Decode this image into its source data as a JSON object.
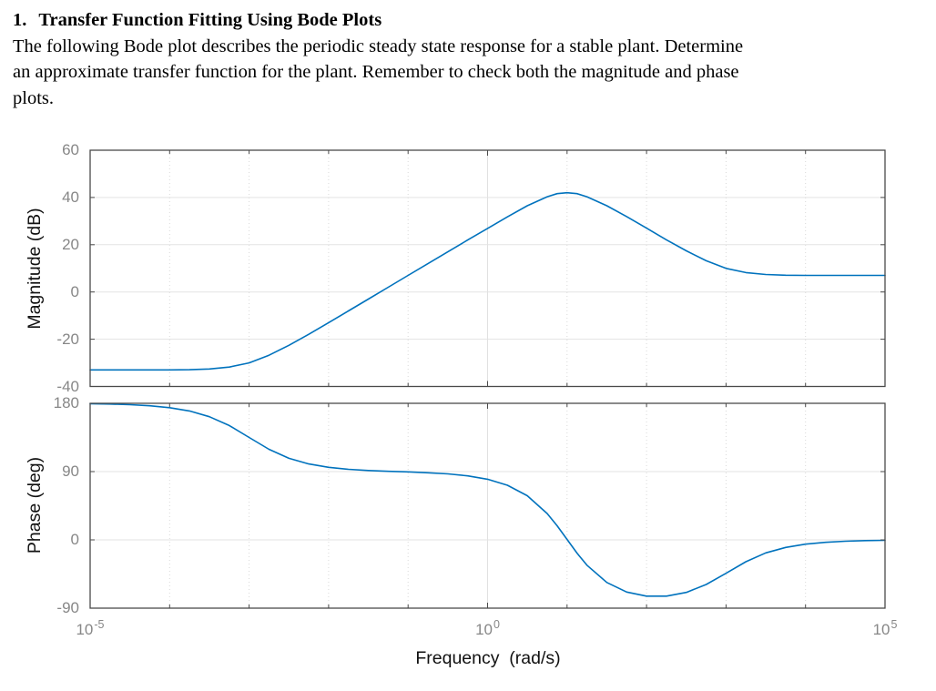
{
  "document": {
    "heading_number": "1.",
    "heading_title": "Transfer Function Fitting Using Bode Plots",
    "body_lines": [
      "The following Bode plot describes the periodic steady state response for a stable plant. Determine",
      "an approximate transfer function for the plant. Remember to check both the magnitude and phase",
      "plots."
    ]
  },
  "x_axis": {
    "label": "Frequency  (rad/s)",
    "scale": "log",
    "xlim": [
      1e-05,
      100000
    ],
    "tick_exponents": [
      "-5",
      "0",
      "5"
    ],
    "tick_positions_log10": [
      -5,
      0,
      5
    ],
    "minor_decades_log10": [
      -4,
      -3,
      -2,
      -1,
      1,
      2,
      3,
      4
    ]
  },
  "colors": {
    "curve": "#0072BD",
    "frame": "#4a4a4a",
    "major_grid": "#e0e0e0",
    "horizontal_grid": "#e3e3e3",
    "minor_grid": "#d9d9d9",
    "tick_label": "#878787",
    "axis_label": "#111111"
  },
  "chart_data": [
    {
      "type": "line",
      "id": "magnitude",
      "ylabel": "Magnitude (dB)",
      "ylim": [
        -40,
        60
      ],
      "yticks": [
        60,
        40,
        20,
        0,
        -20,
        -40
      ],
      "xscale": "log",
      "grid": true,
      "line_color": "#0072BD",
      "series": [
        {
          "name": "magnitude",
          "x_log10": [
            -5,
            -4.75,
            -4.5,
            -4.25,
            -4,
            -3.75,
            -3.5,
            -3.25,
            -3,
            -2.75,
            -2.5,
            -2.25,
            -2,
            -1.75,
            -1.5,
            -1.25,
            -1,
            -0.75,
            -0.5,
            -0.25,
            0,
            0.25,
            0.5,
            0.75,
            0.875,
            1,
            1.125,
            1.25,
            1.5,
            1.75,
            2,
            2.25,
            2.5,
            2.75,
            3,
            3.25,
            3.5,
            3.75,
            4,
            4.25,
            4.5,
            4.75,
            5
          ],
          "y": [
            -33,
            -33,
            -33,
            -33,
            -33,
            -32.9,
            -32.6,
            -31.8,
            -30,
            -26.8,
            -22.6,
            -17.9,
            -13,
            -8,
            -3,
            2,
            7,
            12,
            17,
            22,
            26.9,
            31.8,
            36.5,
            40.3,
            41.6,
            42,
            41.6,
            40.3,
            36.5,
            31.9,
            27,
            22.1,
            17.4,
            13.2,
            10,
            8.2,
            7.4,
            7.1,
            7,
            7,
            7,
            7,
            7
          ]
        }
      ]
    },
    {
      "type": "line",
      "id": "phase",
      "ylabel": "Phase (deg)",
      "ylim": [
        -90,
        180
      ],
      "yticks": [
        180,
        90,
        0,
        -90
      ],
      "xscale": "log",
      "grid": true,
      "line_color": "#0072BD",
      "series": [
        {
          "name": "phase",
          "x_log10": [
            -5,
            -4.75,
            -4.5,
            -4.25,
            -4,
            -3.75,
            -3.5,
            -3.25,
            -3,
            -2.75,
            -2.5,
            -2.25,
            -2,
            -1.75,
            -1.5,
            -1.25,
            -1,
            -0.75,
            -0.5,
            -0.25,
            0,
            0.25,
            0.5,
            0.75,
            0.875,
            1,
            1.125,
            1.25,
            1.5,
            1.75,
            2,
            2.25,
            2.5,
            2.75,
            3,
            3.25,
            3.5,
            3.75,
            4,
            4.25,
            4.5,
            4.75,
            5
          ],
          "y": [
            179.4,
            179,
            178.2,
            176.8,
            174.3,
            169.9,
            162.4,
            150.7,
            135,
            119.4,
            107.5,
            100.1,
            95.6,
            93,
            91.5,
            90.4,
            89.6,
            88.5,
            87,
            84.4,
            79.9,
            72,
            58.2,
            34.7,
            18.6,
            0.6,
            -17.4,
            -33.4,
            -56.1,
            -68.7,
            -74.1,
            -74.2,
            -69.2,
            -58.8,
            -44,
            -28.8,
            -17.2,
            -9.9,
            -5.6,
            -3.2,
            -1.8,
            -1,
            -0.6
          ]
        }
      ]
    }
  ]
}
